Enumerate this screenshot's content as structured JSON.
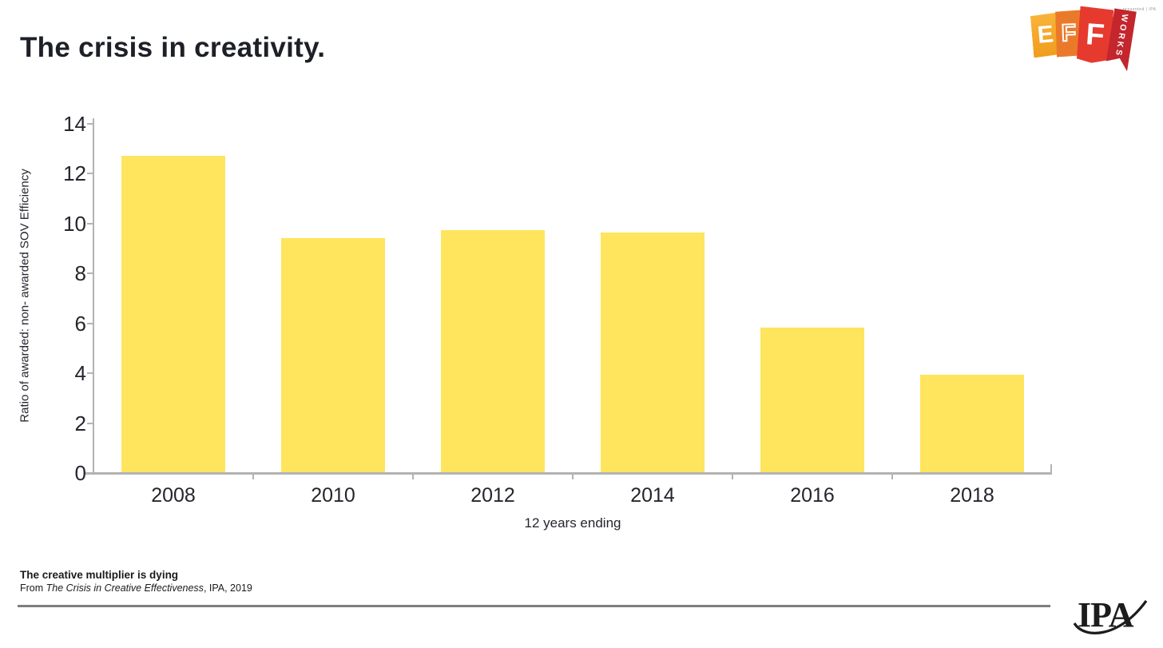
{
  "page": {
    "title": "The crisis in creativity.",
    "footer": {
      "heading": "The creative multiplier is dying",
      "source_prefix": "From ",
      "source_italic": "The Crisis in Creative Effectiveness",
      "source_suffix": ", IPA, 2019"
    }
  },
  "logos": {
    "effworks": {
      "letter_e": "E",
      "letter_f_outline": "F",
      "letter_f_solid": "F",
      "ribbon": "WORKS",
      "presented": "presented | IPA"
    },
    "ipa": "IPA"
  },
  "chart_data": {
    "type": "bar",
    "title": "The crisis in creativity.",
    "categories": [
      "2008",
      "2010",
      "2012",
      "2014",
      "2016",
      "2018"
    ],
    "values": [
      12.7,
      9.4,
      9.7,
      9.6,
      5.8,
      3.9
    ],
    "xlabel": "12 years ending",
    "ylabel": "Ratio of awarded: non- awarded SOV Efficiency",
    "ylim": [
      0,
      14
    ],
    "yticks": [
      0,
      2,
      4,
      6,
      8,
      10,
      12,
      14
    ],
    "grid": false,
    "legend": null,
    "bar_color": "#FFE45E",
    "axis_color": "#B3B3B3",
    "tick_label_color": "#25252D",
    "title_color": "#1E2028"
  }
}
